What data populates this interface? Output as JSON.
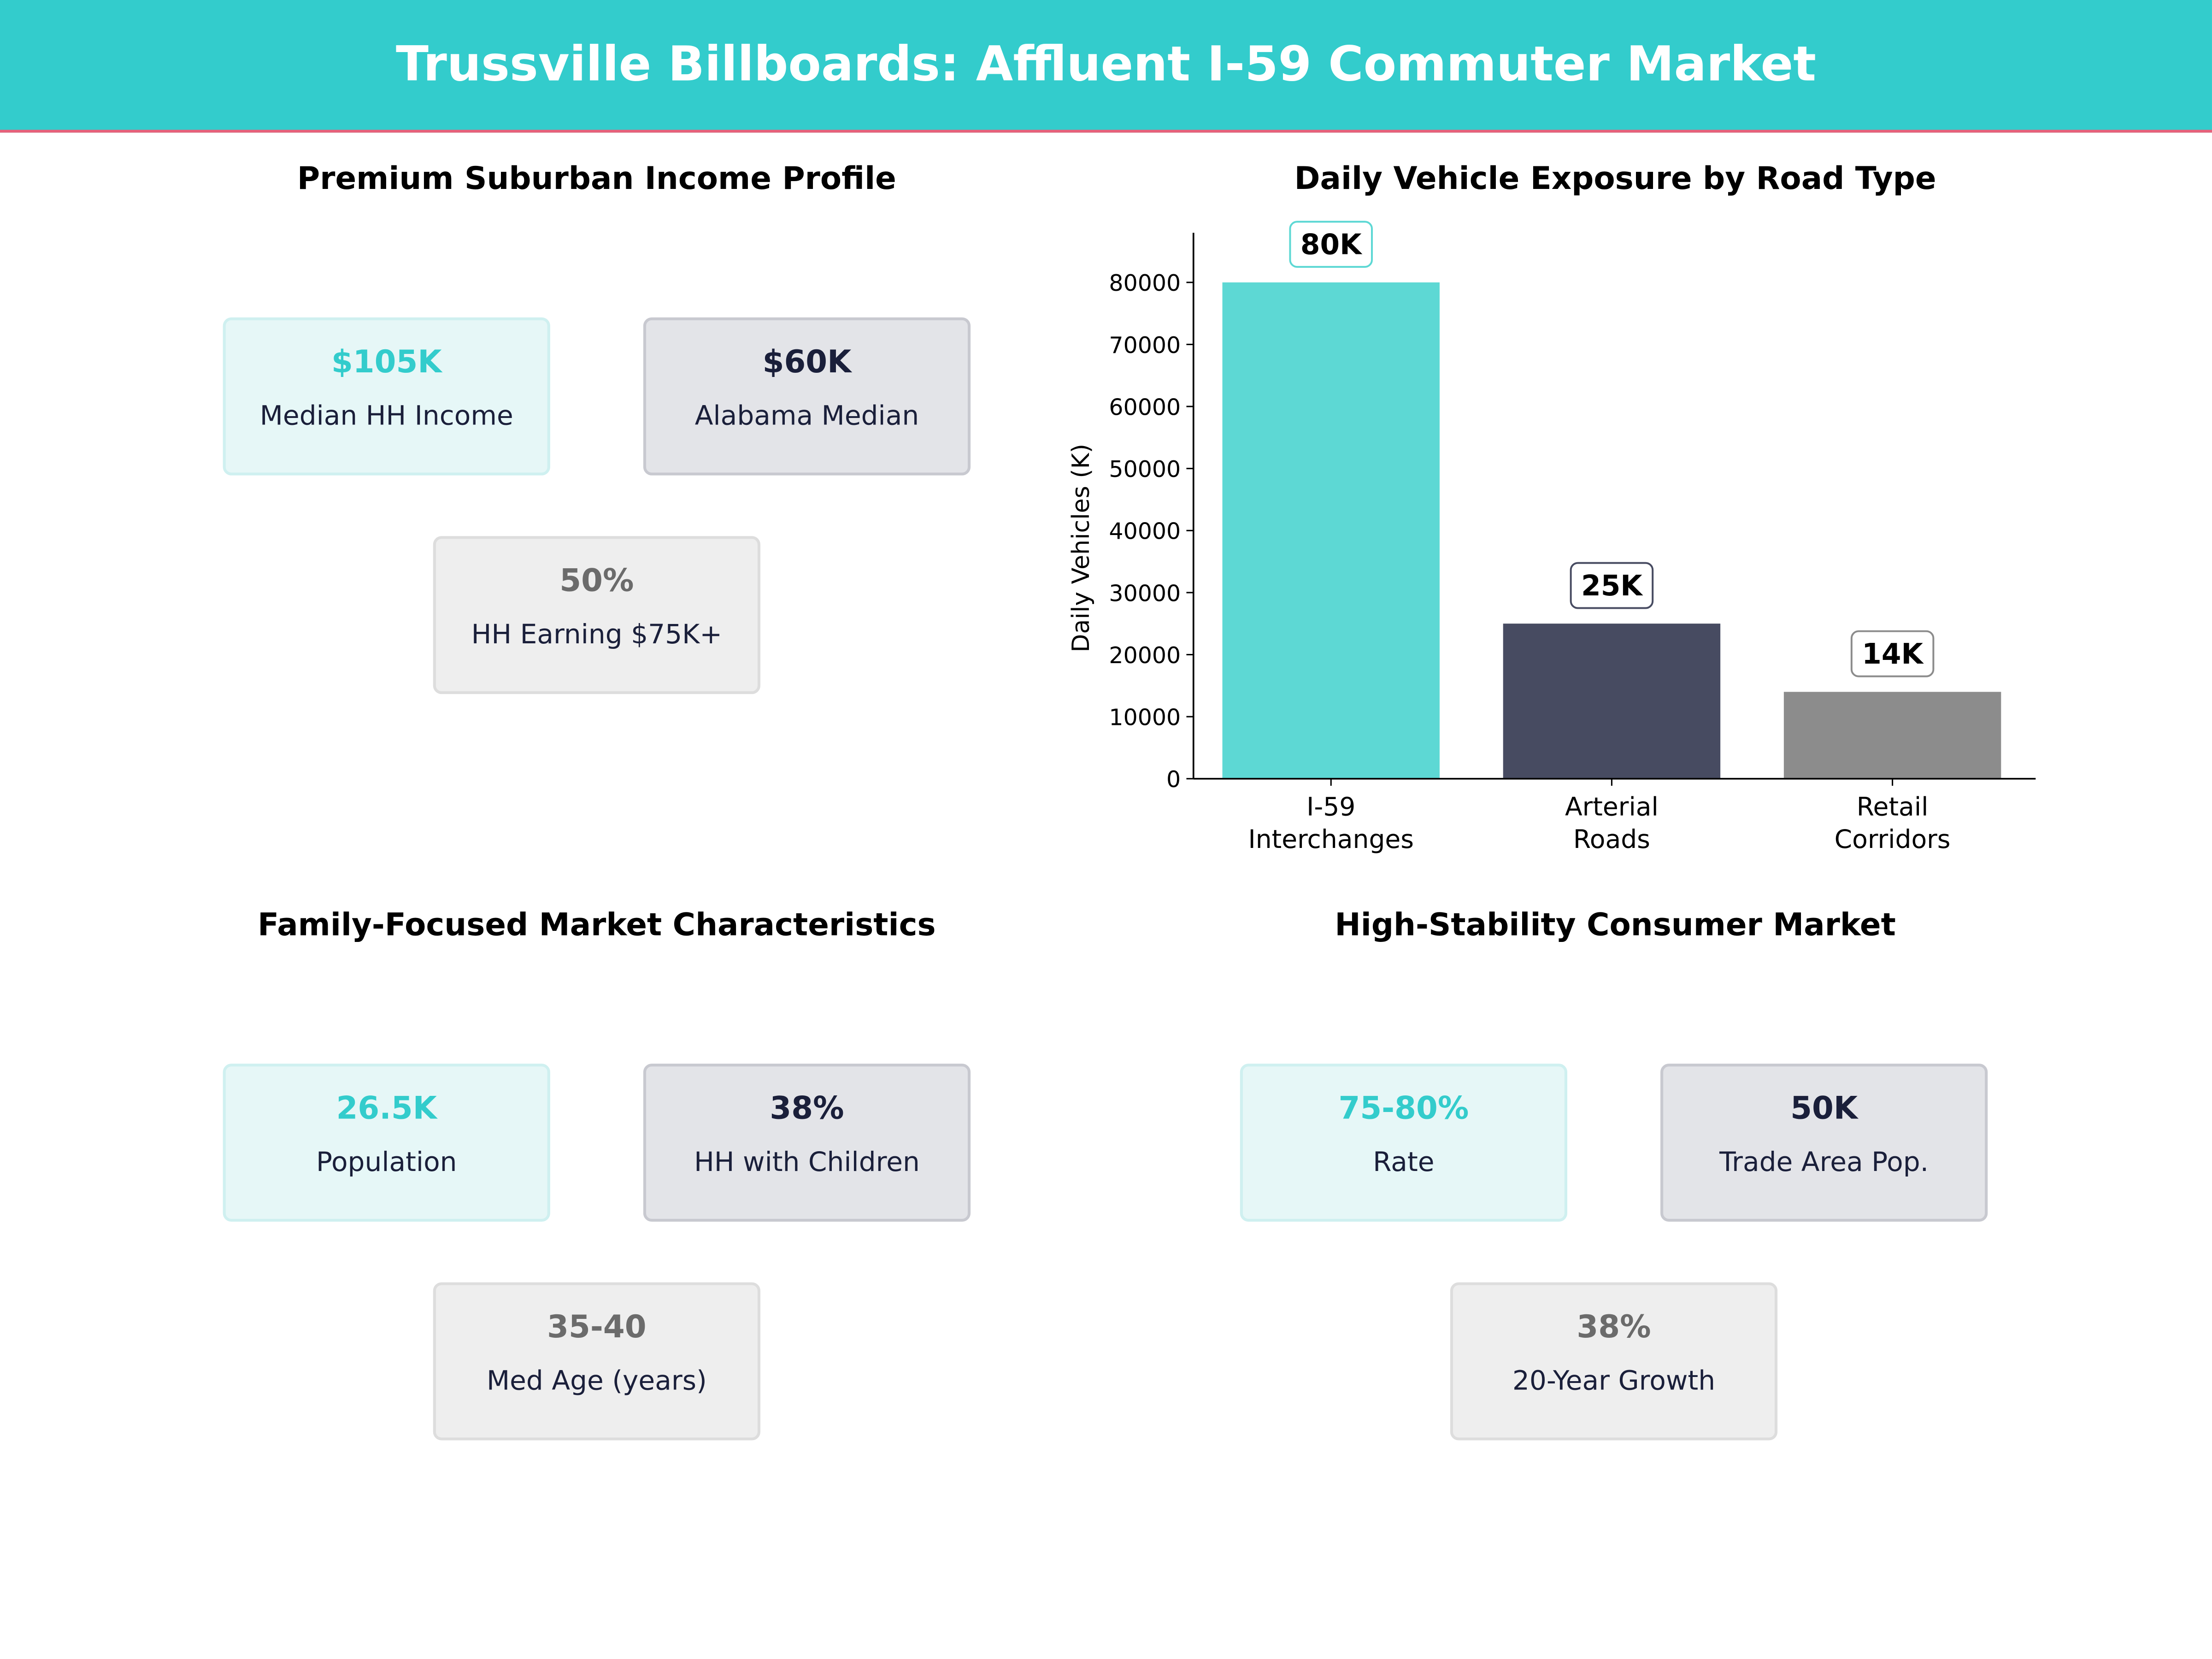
{
  "header": {
    "title": "Trussville Billboards: Affluent I-59 Commuter Market"
  },
  "colors": {
    "header_bg": "#33CCCC",
    "header_rule": "#E8607A",
    "accent": "#33CCCC",
    "dark": "#1A1F3A",
    "gray": "#6B6B6B"
  },
  "panels": [
    {
      "title": "Premium Suburban Income Profile",
      "cards": [
        {
          "value": "$105K",
          "label": "Median HH Income",
          "style": "teal"
        },
        {
          "value": "$60K",
          "label": "Alabama Median",
          "style": "dark"
        },
        {
          "value": "50%",
          "label": "HH Earning $75K+",
          "style": "gray"
        }
      ]
    },
    {
      "title": "Family-Focused Market Characteristics",
      "cards": [
        {
          "value": "26.5K",
          "label": "Population",
          "style": "teal"
        },
        {
          "value": "38%",
          "label": "HH with Children",
          "style": "dark"
        },
        {
          "value": "35-40",
          "label": "Med Age (years)",
          "style": "gray"
        }
      ]
    },
    {
      "title": "High-Stability Consumer Market",
      "cards": [
        {
          "value": "75-80%",
          "label": "Rate",
          "style": "teal"
        },
        {
          "value": "50K",
          "label": "Trade Area Pop.",
          "style": "dark"
        },
        {
          "value": "38%",
          "label": "20-Year Growth",
          "style": "gray"
        }
      ]
    }
  ],
  "chart_data": {
    "type": "bar",
    "title": "Daily Vehicle Exposure by Road Type",
    "xlabel": "",
    "ylabel": "Daily Vehicles (K)",
    "categories": [
      [
        "I-59",
        "Interchanges"
      ],
      [
        "Arterial",
        "Roads"
      ],
      [
        "Retail",
        "Corridors"
      ]
    ],
    "values": [
      80000,
      25000,
      14000
    ],
    "data_labels": [
      "80K",
      "25K",
      "14K"
    ],
    "bar_colors": [
      "#5DD8D4",
      "#474B61",
      "#8C8C8C"
    ],
    "ylim": [
      0,
      88000
    ],
    "yticks": [
      0,
      10000,
      20000,
      30000,
      40000,
      50000,
      60000,
      70000,
      80000
    ],
    "grid": false
  }
}
